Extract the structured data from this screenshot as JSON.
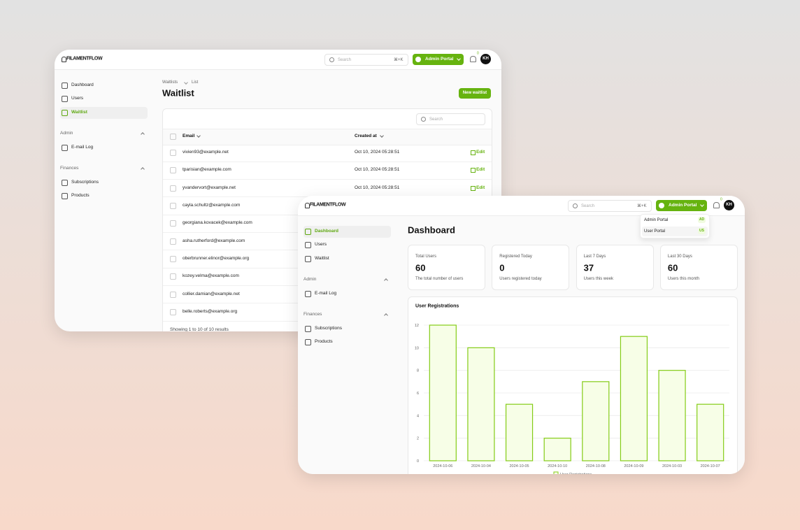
{
  "waitlist_window": {
    "header": {
      "logo": "FILAMENTFLOW",
      "search": "Search",
      "shortcut": "⌘+K",
      "portal_button": "Admin Portal",
      "notifications": "0",
      "avatar": "KH"
    },
    "sidebar": {
      "items": [
        "Dashboard",
        "Users",
        "Waitlist"
      ],
      "active": 2,
      "groups": [
        {
          "label": "Admin",
          "items": [
            "E-mail Log"
          ]
        },
        {
          "label": "Finances",
          "items": [
            "Subscriptions",
            "Products"
          ]
        }
      ]
    },
    "breadcrumbs": [
      "Waitlists",
      "List"
    ],
    "title": "Waitlist",
    "new_button": "New waitlist",
    "table": {
      "search": "Search",
      "columns": [
        "Email",
        "Created at"
      ],
      "edit_label": "Edit",
      "rows": [
        [
          "vivien93@example.net",
          "Oct 10, 2024 05:28:51"
        ],
        [
          "tparisian@example.com",
          "Oct 10, 2024 05:28:51"
        ],
        [
          "yvandervort@example.net",
          "Oct 10, 2024 05:28:51"
        ],
        [
          "cayla.schultz@example.com"
        ],
        [
          "georgiana.kovacek@example.com"
        ],
        [
          "asha.rutherford@example.com"
        ],
        [
          "oberbrunner.elinor@example.org"
        ],
        [
          "kozey.velma@example.com"
        ],
        [
          "collier.damian@example.net"
        ],
        [
          "belle.roberts@example.org"
        ]
      ],
      "footer": "Showing 1 to 10 of 10 results"
    }
  },
  "dashboard_window": {
    "header": {
      "logo": "FILAMENTFLOW",
      "search": "Search",
      "shortcut": "⌘+K",
      "portal_button": "Admin Portal",
      "notifications": "0",
      "avatar": "KH"
    },
    "dropdown": [
      {
        "label": "Admin Portal",
        "badge": "AD"
      },
      {
        "label": "User Portal",
        "badge": "US"
      }
    ],
    "sidebar": {
      "items": [
        "Dashboard",
        "Users",
        "Waitlist"
      ],
      "active": 0,
      "groups": [
        {
          "label": "Admin",
          "items": [
            "E-mail Log"
          ]
        },
        {
          "label": "Finances",
          "items": [
            "Subscriptions",
            "Products"
          ]
        }
      ]
    },
    "title": "Dashboard",
    "stats": [
      {
        "label": "Total Users",
        "value": 60,
        "description": "The total number of users"
      },
      {
        "label": "Registered Today",
        "value": 0,
        "description": "Users registered today"
      },
      {
        "label": "Last 7 Days",
        "value": 37,
        "description": "Users this week"
      },
      {
        "label": "Last 30 Days",
        "value": 60,
        "description": "Users this month"
      }
    ],
    "chart": {
      "type": "bar",
      "title": "User Registrations",
      "categories": [
        "2024-10-06",
        "2024-10-04",
        "2024-10-05",
        "2024-10-10",
        "2024-10-08",
        "2024-10-09",
        "2024-10-03",
        "2024-10-07"
      ],
      "series": [
        {
          "name": "User Registrations",
          "color": "#84cc16",
          "values": [
            12,
            10,
            5,
            2,
            7,
            11,
            8,
            5
          ]
        }
      ],
      "ylim": [
        0,
        12
      ],
      "yticks": [
        0,
        2,
        4,
        6,
        8,
        10,
        12
      ],
      "grid": true
    }
  }
}
